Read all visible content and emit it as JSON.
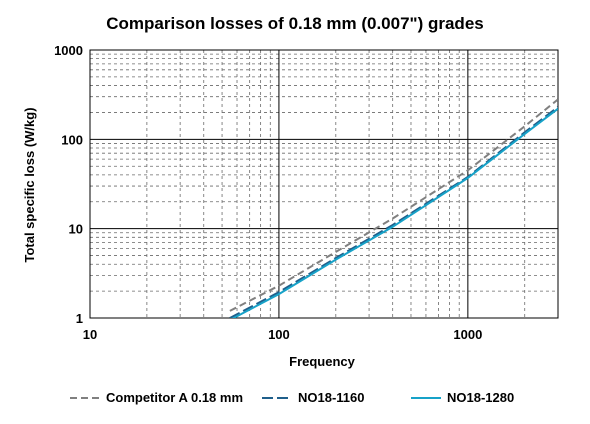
{
  "chart_data": {
    "type": "line",
    "title": "Comparison losses of 0.18 mm (0.007\") grades",
    "xlabel": "Frequency",
    "ylabel": "Total specific loss (W/kg)",
    "x_scale": "log",
    "y_scale": "log",
    "xlim": [
      10,
      3000
    ],
    "ylim": [
      1,
      1000
    ],
    "x_ticks": [
      10,
      100,
      1000
    ],
    "x_tick_labels": [
      "10",
      "100",
      "1000"
    ],
    "y_ticks": [
      1,
      10,
      100,
      1000
    ],
    "y_tick_labels": [
      "1",
      "10",
      "100",
      "1000"
    ],
    "grid": "major solid, minor dashed",
    "legend_position": "bottom",
    "series": [
      {
        "name": "Competitor A 0.18 mm",
        "color": "#808080",
        "line_style": "dashed",
        "x": [
          55,
          100,
          200,
          400,
          1000,
          2000,
          3000
        ],
        "y": [
          1.2,
          2.3,
          5.5,
          13,
          45,
          140,
          280
        ]
      },
      {
        "name": "NO18-1160",
        "color": "#1f5f8b",
        "line_style": "dashed",
        "x": [
          55,
          100,
          200,
          400,
          1000,
          2000,
          3000
        ],
        "y": [
          1.0,
          1.95,
          4.7,
          11,
          38,
          120,
          230
        ]
      },
      {
        "name": "NO18-1280",
        "color": "#17a2c8",
        "line_style": "solid",
        "x": [
          55,
          100,
          200,
          400,
          1000,
          2000,
          3000
        ],
        "y": [
          0.95,
          1.85,
          4.5,
          10.5,
          37,
          115,
          220
        ]
      }
    ]
  }
}
